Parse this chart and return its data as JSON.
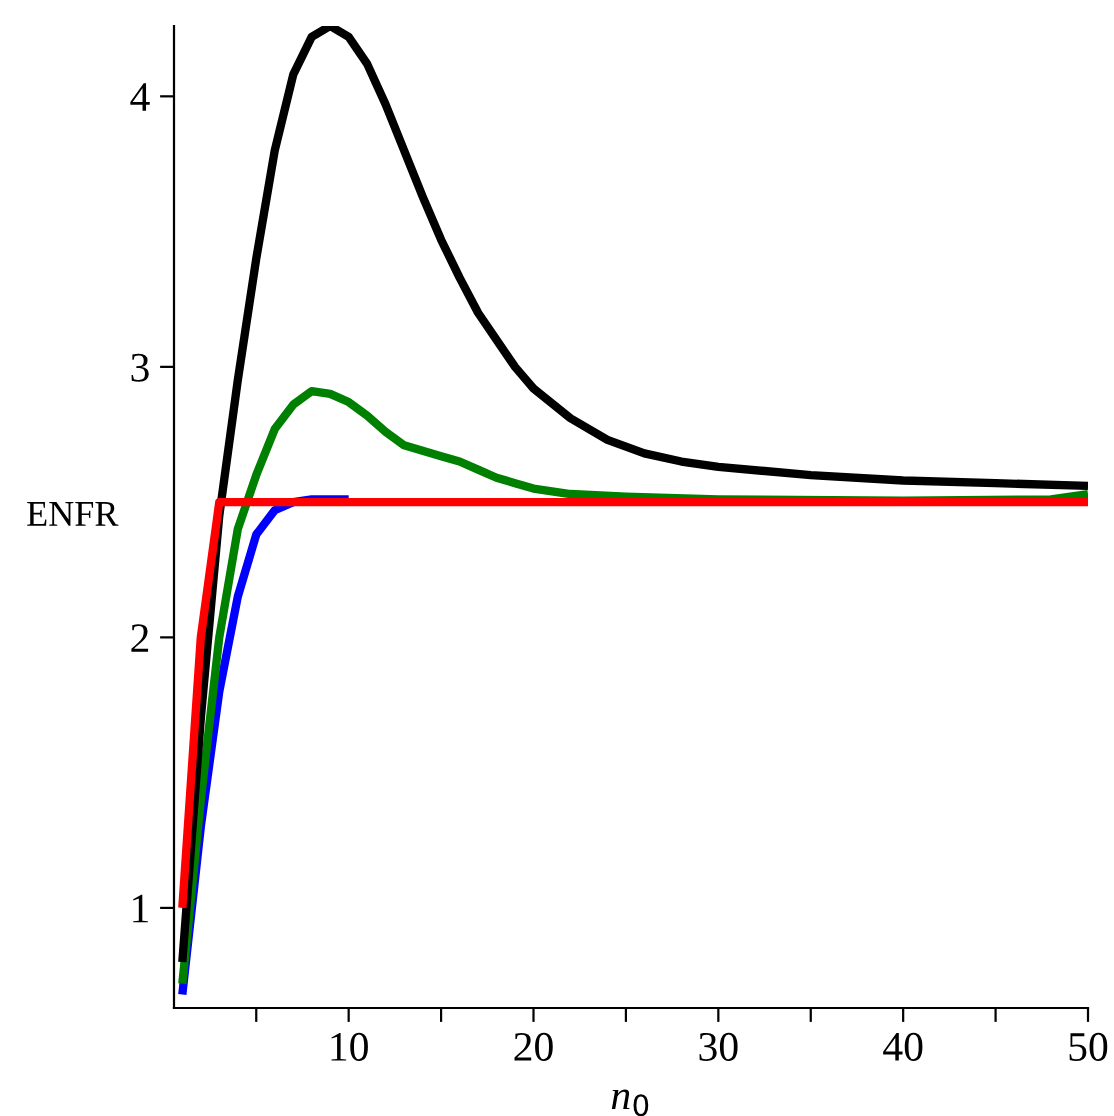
{
  "chart_data": {
    "type": "line",
    "xlabel": "n$_{0}$",
    "ylabel": "ENFR",
    "xlim": [
      0.55,
      50
    ],
    "ylim": [
      0.63,
      4.26
    ],
    "xticks": [
      {
        "value": 5,
        "label": null
      },
      10,
      {
        "value": 15,
        "label": null
      },
      20,
      {
        "value": 25,
        "label": null
      },
      30,
      {
        "value": 35,
        "label": null
      },
      40,
      {
        "value": 45,
        "label": null
      },
      50
    ],
    "yticks": [
      1,
      2,
      3,
      4
    ],
    "grid": false,
    "legend": false,
    "line_style": "solid",
    "marker": "none",
    "series": [
      {
        "color": "#0000ff",
        "x": [
          1,
          2,
          3,
          4,
          5,
          6,
          7,
          8,
          10
        ],
        "values": [
          0.68,
          1.3,
          1.8,
          2.15,
          2.38,
          2.47,
          2.5,
          2.51,
          2.51
        ]
      },
      {
        "color": "#008000",
        "x": [
          1,
          2,
          3,
          4,
          5,
          6,
          7,
          8,
          9,
          10,
          11,
          12,
          13,
          14,
          15,
          16,
          17,
          18,
          19,
          20,
          22,
          25,
          30,
          40,
          48,
          50
        ],
        "values": [
          0.72,
          1.4,
          2.0,
          2.4,
          2.6,
          2.77,
          2.86,
          2.91,
          2.9,
          2.87,
          2.82,
          2.76,
          2.71,
          2.69,
          2.67,
          2.65,
          2.62,
          2.59,
          2.57,
          2.55,
          2.53,
          2.52,
          2.51,
          2.505,
          2.51,
          2.53
        ]
      },
      {
        "color": "#000000",
        "x": [
          1,
          2,
          3,
          4,
          5,
          6,
          7,
          8,
          9,
          10,
          11,
          12,
          13,
          14,
          15,
          16,
          17,
          18,
          19,
          20,
          22,
          24,
          26,
          28,
          30,
          35,
          40,
          45,
          50
        ],
        "values": [
          0.8,
          1.7,
          2.45,
          2.95,
          3.4,
          3.8,
          4.08,
          4.22,
          4.26,
          4.22,
          4.12,
          3.97,
          3.8,
          3.63,
          3.47,
          3.33,
          3.2,
          3.1,
          3.0,
          2.92,
          2.81,
          2.73,
          2.68,
          2.65,
          2.63,
          2.6,
          2.58,
          2.57,
          2.56
        ]
      },
      {
        "color": "#ff0000",
        "x": [
          1,
          2,
          3,
          50
        ],
        "values": [
          1.0,
          2.0,
          2.5,
          2.5
        ]
      }
    ]
  }
}
